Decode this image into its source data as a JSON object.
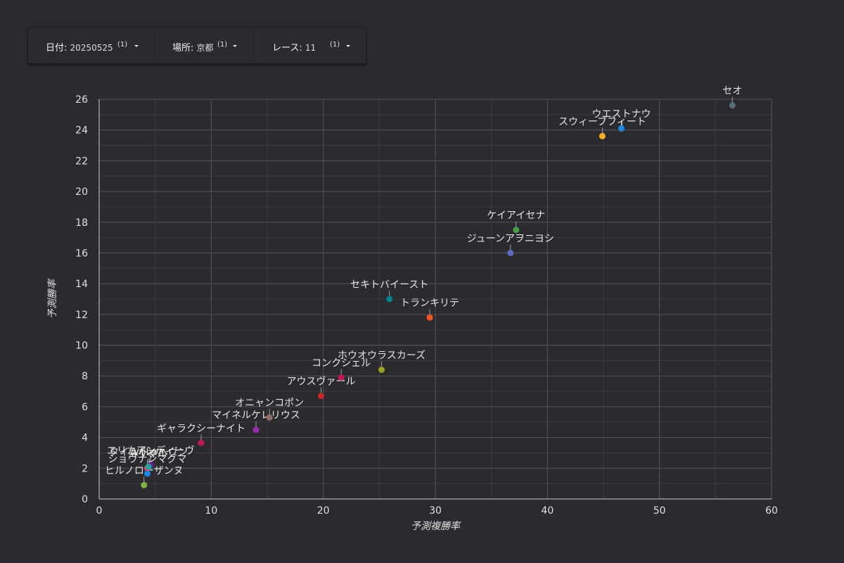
{
  "filters": {
    "date": {
      "label": "日付",
      "sep": ":",
      "value": "20250525",
      "count": "(1)"
    },
    "place": {
      "label": "場所",
      "sep": ":",
      "value": "京都",
      "count": "(1)"
    },
    "race": {
      "label": "レース",
      "sep": ":",
      "value": "11",
      "count": "(1)"
    }
  },
  "chart_data": {
    "type": "scatter",
    "title": "",
    "xlabel": "予測複勝率",
    "ylabel": "予測勝率",
    "xlim": [
      0,
      60
    ],
    "ylim": [
      0,
      26
    ],
    "xticks": [
      0,
      10,
      20,
      30,
      40,
      50,
      60
    ],
    "yticks": [
      0,
      2,
      4,
      6,
      8,
      10,
      12,
      14,
      16,
      18,
      20,
      22,
      24,
      26
    ],
    "grid": true,
    "points": [
      {
        "label": "セオ",
        "x": 56.5,
        "y": 25.6,
        "color": "#546e7a"
      },
      {
        "label": "ウエストナウ",
        "x": 46.6,
        "y": 24.1,
        "color": "#1e88e5"
      },
      {
        "label": "スウィーブフィート",
        "x": 44.9,
        "y": 23.6,
        "color": "#fbb024"
      },
      {
        "label": "ケイアイセナ",
        "x": 37.2,
        "y": 17.5,
        "color": "#43a047"
      },
      {
        "label": "ジューンアヲニヨシ",
        "x": 36.7,
        "y": 16.0,
        "color": "#5c6bc0"
      },
      {
        "label": "セキトバイースト",
        "x": 25.9,
        "y": 13.0,
        "color": "#00838f"
      },
      {
        "label": "トランキリテ",
        "x": 29.5,
        "y": 11.8,
        "color": "#f4511e"
      },
      {
        "label": "ホウオウラスカーズ",
        "x": 25.2,
        "y": 8.4,
        "color": "#9e9d24"
      },
      {
        "label": "コンクシェル",
        "x": 21.6,
        "y": 7.9,
        "color": "#c2185b"
      },
      {
        "label": "アウスヴァール",
        "x": 19.8,
        "y": 6.7,
        "color": "#c62828"
      },
      {
        "label": "オニャンコポン",
        "x": 15.2,
        "y": 5.3,
        "color": "#8d6e63"
      },
      {
        "label": "マイネルケレリウス",
        "x": 14.0,
        "y": 4.5,
        "color": "#9c27b0"
      },
      {
        "label": "ギャラクシーナイト",
        "x": 9.1,
        "y": 3.65,
        "color": "#c2185b"
      },
      {
        "label": "パレハ",
        "x": 4.5,
        "y": 2.1,
        "color": "#1565c0"
      },
      {
        "label": "エリカアンディーヴ",
        "x": 4.6,
        "y": 2.2,
        "color": "#6a1b9a"
      },
      {
        "label": "ヨリマル",
        "x": 4.3,
        "y": 2.0,
        "color": "#ec407a"
      },
      {
        "label": "タイムトゥヘヴン",
        "x": 4.4,
        "y": 2.1,
        "color": "#26a69a"
      },
      {
        "label": "ショウナンマグマ",
        "x": 4.3,
        "y": 1.65,
        "color": "#1e88e5"
      },
      {
        "label": "ヒルノローザンヌ",
        "x": 4.0,
        "y": 0.9,
        "color": "#7cb342"
      }
    ]
  }
}
